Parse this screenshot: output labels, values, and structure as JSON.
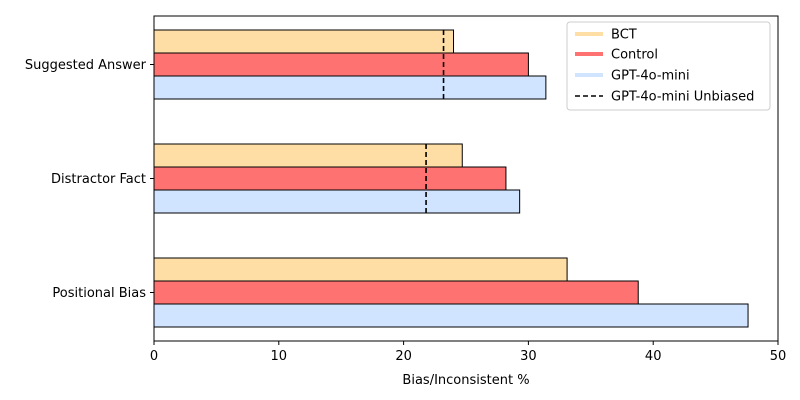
{
  "chart_data": {
    "type": "bar",
    "orientation": "horizontal",
    "categories": [
      "Suggested Answer",
      "Distractor Fact",
      "Positional Bias"
    ],
    "series": [
      {
        "name": "BCT",
        "color": "#FFDEA6",
        "values": [
          24.0,
          24.7,
          33.1
        ]
      },
      {
        "name": "Control",
        "color": "#FF7272",
        "values": [
          30.0,
          28.2,
          38.8
        ]
      },
      {
        "name": "GPT-4o-mini",
        "color": "#D0E4FF",
        "values": [
          31.4,
          29.3,
          47.6
        ]
      }
    ],
    "reference": {
      "name": "GPT-4o-mini Unbiased",
      "style": "dashed",
      "color": "#000000",
      "values": [
        23.2,
        21.8,
        null
      ]
    },
    "xlabel": "Bias/Inconsistent %",
    "ylabel": "",
    "xlim": [
      0,
      50
    ],
    "xticks": [
      0,
      10,
      20,
      30,
      40,
      50
    ],
    "grid": false,
    "legend_position": "top-right"
  }
}
